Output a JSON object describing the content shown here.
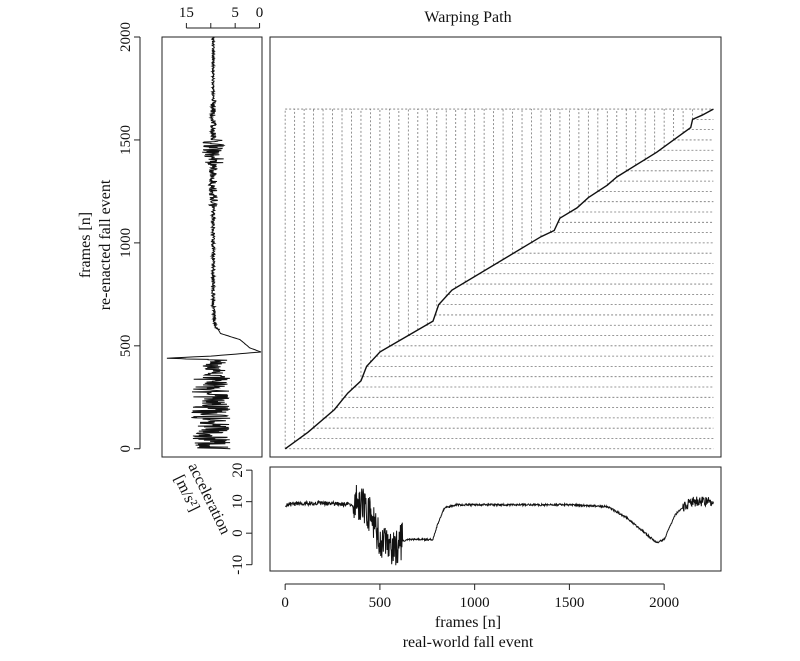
{
  "chart_data": [
    {
      "type": "line",
      "title": "Warping Path",
      "xlabel": "",
      "ylabel": "",
      "xlim": [
        -80,
        2300
      ],
      "ylim": [
        -40,
        2000
      ],
      "x_ticks": [],
      "y_ticks": [],
      "path_x": [
        0,
        120,
        260,
        330,
        400,
        430,
        500,
        780,
        810,
        880,
        1350,
        1420,
        1450,
        1540,
        1600,
        1700,
        1750,
        1960,
        2050,
        2140,
        2150,
        2200,
        2260
      ],
      "path_y": [
        0,
        80,
        190,
        270,
        330,
        400,
        470,
        620,
        700,
        770,
        1030,
        1060,
        1120,
        1170,
        1220,
        1280,
        1320,
        1440,
        1500,
        1560,
        1600,
        1620,
        1650
      ],
      "lines_max_x": 2260,
      "lines_max_y": 1650,
      "grid": false,
      "legend": "none"
    },
    {
      "type": "line",
      "title": "",
      "xlabel": "acceleration [m/s²]",
      "ylabel": "frames [n] re-enacted fall event",
      "ylabel_lines": [
        "frames [n]",
        "re-enacted fall event"
      ],
      "xlabel_lines": [
        "acceleration",
        "[m/s²]"
      ],
      "x_reversed": true,
      "xlim": [
        20,
        -0.5
      ],
      "ylim": [
        -40,
        2000
      ],
      "x_ticks": [
        15,
        5,
        0
      ],
      "y_ticks": [
        0,
        500,
        1000,
        1500,
        2000
      ],
      "signal_anchor_y": [
        0,
        80,
        160,
        240,
        320,
        380,
        400,
        430,
        440,
        450,
        470,
        490,
        530,
        560,
        600,
        700,
        800,
        900,
        1000,
        1100,
        1200,
        1250,
        1290,
        1330,
        1380,
        1420,
        1440,
        1460,
        1500,
        1600,
        1700,
        1800,
        1900,
        2000
      ],
      "signal_anchor_v": [
        10,
        10,
        10,
        10,
        10,
        9,
        10,
        8,
        19,
        10,
        -0.3,
        2,
        4,
        8,
        9,
        9.5,
        9.5,
        9.5,
        9.5,
        9.5,
        9.5,
        9.5,
        9.5,
        9.5,
        9.5,
        9.5,
        10,
        9.5,
        9.5,
        9.5,
        9.5,
        9.5,
        9.5,
        9.5
      ],
      "signal_noise": [
        [
          0,
          360,
          4
        ],
        [
          360,
          440,
          2
        ],
        [
          580,
          700,
          0.4
        ],
        [
          700,
          1180,
          0.35
        ],
        [
          1180,
          1380,
          0.9
        ],
        [
          1380,
          1500,
          2.2
        ],
        [
          1500,
          1700,
          0.6
        ],
        [
          1700,
          2000,
          0.25
        ]
      ],
      "grid": false,
      "legend": "none"
    },
    {
      "type": "line",
      "title": "",
      "xlabel": "frames [n] real-world fall event",
      "xlabel_lines": [
        "frames [n]",
        "real-world fall event"
      ],
      "ylabel": "",
      "xlim": [
        -80,
        2300
      ],
      "ylim": [
        -12,
        21
      ],
      "x_ticks": [
        0,
        500,
        1000,
        1500,
        2000
      ],
      "y_ticks": [
        -10,
        0,
        10,
        20
      ],
      "signal_anchor_x": [
        0,
        80,
        200,
        360,
        400,
        430,
        460,
        500,
        560,
        600,
        650,
        780,
        800,
        840,
        900,
        1200,
        1500,
        1700,
        1800,
        1900,
        1960,
        2000,
        2060,
        2140,
        2200,
        2260
      ],
      "signal_anchor_v": [
        9,
        9.5,
        9.5,
        9,
        10,
        8,
        4,
        -2,
        -6,
        -3,
        -2,
        -2,
        2,
        8,
        9,
        9,
        9,
        8.5,
        5,
        0,
        -3,
        -2,
        6,
        10,
        10,
        10
      ],
      "signal_noise": [
        [
          0,
          360,
          0.7
        ],
        [
          360,
          620,
          6
        ],
        [
          620,
          780,
          0.3
        ],
        [
          780,
          1650,
          0.3
        ],
        [
          1650,
          2100,
          0.3
        ],
        [
          2100,
          2260,
          1.6
        ]
      ],
      "grid": false,
      "legend": "none"
    }
  ]
}
